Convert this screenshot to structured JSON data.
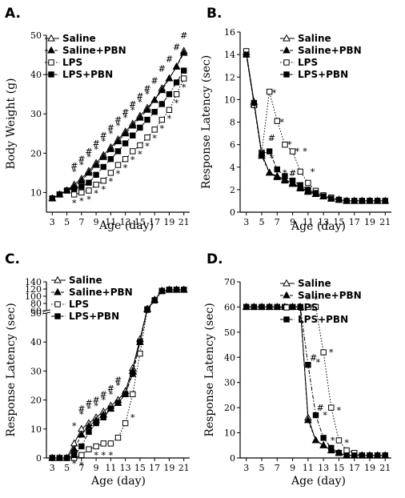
{
  "chart_data": [
    {
      "id": "A",
      "panel_label": "A.",
      "type": "line",
      "xlabel": "Age (day)",
      "ylabel": "Body Weight (g)",
      "xlim": [
        2.2,
        21.8
      ],
      "ylim": [
        5,
        50
      ],
      "xticks": [
        3,
        5,
        7,
        9,
        11,
        13,
        15,
        17,
        19,
        21
      ],
      "yticks": [
        10,
        20,
        30,
        40,
        50
      ],
      "legend": [
        {
          "name": "Saline",
          "marker": "open-triangle",
          "dash": "solid"
        },
        {
          "name": "Saline+PBN",
          "marker": "filled-triangle",
          "dash": "dashed"
        },
        {
          "name": "LPS",
          "marker": "open-square",
          "dash": "dotted"
        },
        {
          "name": "LPS+PBN",
          "marker": "filled-square",
          "dash": "dashdot"
        }
      ],
      "x": [
        3,
        4,
        5,
        6,
        7,
        8,
        9,
        10,
        11,
        12,
        13,
        14,
        15,
        16,
        17,
        18,
        19,
        20,
        21
      ],
      "series": [
        {
          "name": "Saline",
          "marker": "open-triangle",
          "dash": "solid",
          "values": [
            8.5,
            9.5,
            10.5,
            12,
            13.5,
            15.5,
            17.5,
            19.5,
            21.5,
            23.5,
            25.5,
            27.5,
            29.5,
            31.5,
            33.5,
            36.5,
            39,
            42,
            46
          ]
        },
        {
          "name": "Saline+PBN",
          "marker": "filled-triangle",
          "dash": "dashed",
          "values": [
            8.5,
            9.5,
            10.5,
            11.5,
            13,
            15,
            17,
            19,
            21,
            23,
            25,
            27,
            29,
            31,
            33.5,
            36,
            39,
            42,
            45.5
          ]
        },
        {
          "name": "LPS",
          "marker": "open-square",
          "dash": "dotted",
          "values": [
            8.5,
            9.5,
            10.5,
            9.5,
            10,
            10.5,
            12,
            13,
            15,
            17,
            18.5,
            20.5,
            22,
            24,
            26,
            28.5,
            31,
            35,
            39
          ]
        },
        {
          "name": "LPS+PBN",
          "marker": "filled-square",
          "dash": "dashdot",
          "values": [
            8.5,
            9.5,
            10.5,
            11,
            11.5,
            12.5,
            14.5,
            16.5,
            18.5,
            20.5,
            22.5,
            24.5,
            26.5,
            28.5,
            30.5,
            32.5,
            35,
            38,
            41
          ]
        }
      ],
      "annotations": [
        {
          "text": "#",
          "x": 6,
          "y": 16.8
        },
        {
          "text": "#",
          "x": 7,
          "y": 18.5
        },
        {
          "text": "#",
          "x": 8,
          "y": 20.5
        },
        {
          "text": "#",
          "x": 9,
          "y": 22.5
        },
        {
          "text": "#",
          "x": 10,
          "y": 24.5
        },
        {
          "text": "#",
          "x": 11,
          "y": 26.5
        },
        {
          "text": "#",
          "x": 12,
          "y": 28.5
        },
        {
          "text": "#",
          "x": 13,
          "y": 30.5
        },
        {
          "text": "#",
          "x": 14,
          "y": 32.5
        },
        {
          "text": "#",
          "x": 15,
          "y": 34.5
        },
        {
          "text": "#",
          "x": 16,
          "y": 36.5
        },
        {
          "text": "#",
          "x": 17,
          "y": 38.5
        },
        {
          "text": "#",
          "x": 18,
          "y": 41.5
        },
        {
          "text": "#",
          "x": 19,
          "y": 44
        },
        {
          "text": "#",
          "x": 20,
          "y": 47
        },
        {
          "text": "#",
          "x": 21,
          "y": 50
        },
        {
          "text": "*",
          "x": 6,
          "y": 15.3
        },
        {
          "text": "*",
          "x": 7,
          "y": 17
        },
        {
          "text": "*",
          "x": 8,
          "y": 19
        },
        {
          "text": "*",
          "x": 9,
          "y": 21
        },
        {
          "text": "*",
          "x": 10,
          "y": 23
        },
        {
          "text": "*",
          "x": 11,
          "y": 25
        },
        {
          "text": "*",
          "x": 12,
          "y": 27
        },
        {
          "text": "*",
          "x": 13,
          "y": 29
        },
        {
          "text": "*",
          "x": 14,
          "y": 31
        },
        {
          "text": "*",
          "x": 15,
          "y": 33
        },
        {
          "text": "*",
          "x": 16,
          "y": 35
        },
        {
          "text": "*",
          "x": 6,
          "y": 7.3
        },
        {
          "text": "*",
          "x": 7,
          "y": 7.8
        },
        {
          "text": "*",
          "x": 8,
          "y": 8.3
        },
        {
          "text": "*",
          "x": 9,
          "y": 9.8
        },
        {
          "text": "*",
          "x": 10,
          "y": 10.8
        },
        {
          "text": "*",
          "x": 11,
          "y": 12.8
        },
        {
          "text": "*",
          "x": 12,
          "y": 14.8
        },
        {
          "text": "*",
          "x": 13,
          "y": 16.3
        },
        {
          "text": "*",
          "x": 14,
          "y": 18.3
        },
        {
          "text": "*",
          "x": 15,
          "y": 19.8
        },
        {
          "text": "*",
          "x": 16,
          "y": 21.8
        },
        {
          "text": "*",
          "x": 17,
          "y": 23.8
        },
        {
          "text": "*",
          "x": 18,
          "y": 26.3
        },
        {
          "text": "*",
          "x": 19,
          "y": 28.8
        },
        {
          "text": "*",
          "x": 20,
          "y": 32.8
        },
        {
          "text": "*",
          "x": 21,
          "y": 36.8
        }
      ]
    },
    {
      "id": "B",
      "panel_label": "B.",
      "type": "line",
      "xlabel": "Age (day)",
      "ylabel": "Response Latency (sec)",
      "xlim": [
        2.2,
        21.8
      ],
      "ylim": [
        0,
        16
      ],
      "xticks": [
        3,
        5,
        7,
        9,
        11,
        13,
        15,
        17,
        19,
        21
      ],
      "yticks": [
        0,
        2,
        4,
        6,
        8,
        10,
        12,
        14,
        16
      ],
      "legend": [
        {
          "name": "Saline",
          "marker": "open-triangle",
          "dash": "solid"
        },
        {
          "name": "Saline+PBN",
          "marker": "filled-triangle",
          "dash": "dashed"
        },
        {
          "name": "LPS",
          "marker": "open-square",
          "dash": "dotted"
        },
        {
          "name": "LPS+PBN",
          "marker": "filled-square",
          "dash": "dashdot"
        }
      ],
      "x": [
        3,
        4,
        5,
        6,
        7,
        8,
        9,
        10,
        11,
        12,
        13,
        14,
        15,
        16,
        17,
        18,
        19,
        20,
        21
      ],
      "series": [
        {
          "name": "Saline",
          "marker": "open-triangle",
          "dash": "solid",
          "values": [
            14.2,
            9.8,
            5.2,
            3.5,
            3.2,
            2.9,
            2.6,
            2.2,
            1.9,
            1.6,
            1.4,
            1.2,
            1.1,
            1.0,
            1.0,
            1.0,
            1.0,
            1.0,
            1.0
          ]
        },
        {
          "name": "Saline+PBN",
          "marker": "filled-triangle",
          "dash": "dashed",
          "values": [
            14.0,
            9.6,
            5.0,
            3.5,
            3.1,
            2.8,
            2.5,
            2.1,
            1.8,
            1.6,
            1.4,
            1.2,
            1.1,
            1.0,
            1.0,
            1.0,
            1.0,
            1.0,
            1.0
          ]
        },
        {
          "name": "LPS",
          "marker": "open-square",
          "dash": "dotted",
          "values": [
            14.3,
            9.5,
            5.3,
            10.7,
            8.1,
            6.0,
            5.4,
            3.6,
            2.6,
            1.9,
            1.5,
            1.3,
            1.1,
            1.0,
            1.0,
            1.0,
            1.0,
            1.0,
            1.0
          ]
        },
        {
          "name": "LPS+PBN",
          "marker": "filled-square",
          "dash": "dashdot",
          "values": [
            14.0,
            9.7,
            5.2,
            5.4,
            3.8,
            3.2,
            2.8,
            2.4,
            2.0,
            1.7,
            1.4,
            1.2,
            1.1,
            1.0,
            1.0,
            1.0,
            1.0,
            1.0,
            1.0
          ]
        }
      ],
      "annotations": [
        {
          "text": "*",
          "x": 6.6,
          "y": 10.6
        },
        {
          "text": "*",
          "x": 7.6,
          "y": 8.0
        },
        {
          "text": "*",
          "x": 8.6,
          "y": 6.0
        },
        {
          "text": "*",
          "x": 9.6,
          "y": 5.4
        },
        {
          "text": "*",
          "x": 10.6,
          "y": 5.4
        },
        {
          "text": "*",
          "x": 11.6,
          "y": 3.6
        },
        {
          "text": "#",
          "x": 6.3,
          "y": 6.6
        },
        {
          "text": "*",
          "x": 6.3,
          "y": 4.8
        },
        {
          "text": "*",
          "x": 8.0,
          "y": 3.5
        },
        {
          "text": "#",
          "x": 9.0,
          "y": 3.5
        }
      ]
    },
    {
      "id": "C",
      "panel_label": "C.",
      "type": "line",
      "xlabel": "Age (day)",
      "ylabel": "Response Latency (sec)",
      "xlim": [
        2.2,
        21.8
      ],
      "ylim": [
        0,
        140
      ],
      "axis_break": [
        50,
        60
      ],
      "xticks": [
        3,
        5,
        7,
        9,
        11,
        13,
        15,
        17,
        19,
        21
      ],
      "yticks": [
        0,
        10,
        20,
        30,
        40,
        50,
        60,
        80,
        100,
        120,
        140
      ],
      "legend": [
        {
          "name": "Saline",
          "marker": "open-triangle",
          "dash": "solid"
        },
        {
          "name": "Saline+PBN",
          "marker": "filled-triangle",
          "dash": "dashed"
        },
        {
          "name": "LPS",
          "marker": "open-square",
          "dash": "dotted"
        },
        {
          "name": "LPS+PBN",
          "marker": "filled-square",
          "dash": "dashdot"
        }
      ],
      "x": [
        3,
        4,
        5,
        6,
        7,
        8,
        9,
        10,
        11,
        12,
        13,
        14,
        15,
        16,
        17,
        18,
        19,
        20,
        21
      ],
      "series": [
        {
          "name": "Saline",
          "marker": "open-triangle",
          "dash": "solid",
          "values": [
            0,
            0,
            0,
            5,
            10,
            12,
            14,
            16,
            18,
            20,
            23,
            31,
            41,
            65,
            90,
            115,
            118,
            118,
            118
          ]
        },
        {
          "name": "Saline+PBN",
          "marker": "filled-triangle",
          "dash": "dashed",
          "values": [
            0,
            0,
            0,
            3,
            8,
            11,
            13,
            15,
            17,
            19,
            22,
            30,
            40,
            64,
            90,
            115,
            118,
            118,
            118
          ]
        },
        {
          "name": "LPS",
          "marker": "open-square",
          "dash": "dotted",
          "values": [
            0,
            0,
            0,
            0,
            1,
            3,
            4,
            5,
            5,
            7,
            12,
            22,
            36,
            62,
            88,
            114,
            118,
            118,
            118
          ]
        },
        {
          "name": "LPS+PBN",
          "marker": "filled-square",
          "dash": "dashdot",
          "values": [
            0,
            0,
            0,
            1,
            4,
            9,
            12,
            14,
            17,
            19,
            22,
            29,
            40,
            64,
            89,
            115,
            118,
            118,
            118
          ]
        }
      ],
      "annotations": [
        {
          "text": "*",
          "x": 6,
          "y": 11
        },
        {
          "text": "#",
          "x": 7,
          "y": 17
        },
        {
          "text": "#",
          "x": 8,
          "y": 19
        },
        {
          "text": "#",
          "x": 9,
          "y": 20
        },
        {
          "text": "#",
          "x": 10,
          "y": 22
        },
        {
          "text": "#",
          "x": 11,
          "y": 24
        },
        {
          "text": "#",
          "x": 12,
          "y": 27
        },
        {
          "text": "*",
          "x": 7,
          "y": 15
        },
        {
          "text": "*",
          "x": 8,
          "y": 17
        },
        {
          "text": "*",
          "x": 9,
          "y": 18
        },
        {
          "text": "*",
          "x": 10,
          "y": 20
        },
        {
          "text": "*",
          "x": 11,
          "y": 22
        },
        {
          "text": "*",
          "x": 12,
          "y": 25
        },
        {
          "text": "*",
          "x": 6,
          "y": -2
        },
        {
          "text": "*",
          "x": 7,
          "y": -2.5
        },
        {
          "text": "*",
          "x": 9,
          "y": 1
        },
        {
          "text": "*",
          "x": 10,
          "y": 1
        },
        {
          "text": "*",
          "x": 11,
          "y": 1
        },
        {
          "text": "*",
          "x": 14,
          "y": 14
        }
      ]
    },
    {
      "id": "D",
      "panel_label": "D.",
      "type": "line",
      "xlabel": "Age (day)",
      "ylabel": "Response Latency (sec)",
      "xlim": [
        2.2,
        21.8
      ],
      "ylim": [
        0,
        70
      ],
      "xticks": [
        3,
        5,
        7,
        9,
        11,
        13,
        15,
        17,
        19,
        21
      ],
      "yticks": [
        0,
        10,
        20,
        30,
        40,
        50,
        60,
        70
      ],
      "legend": [
        {
          "name": "Saline",
          "marker": "open-triangle",
          "dash": "solid"
        },
        {
          "name": "Saline+PBN",
          "marker": "filled-triangle",
          "dash": "dashed"
        },
        {
          "name": "LPS",
          "marker": "open-square",
          "dash": "dotted"
        },
        {
          "name": "LPS+PBN",
          "marker": "filled-square",
          "dash": "dashdot"
        }
      ],
      "x": [
        3,
        4,
        5,
        6,
        7,
        8,
        9,
        10,
        11,
        12,
        13,
        14,
        15,
        16,
        17,
        18,
        19,
        20,
        21
      ],
      "series": [
        {
          "name": "Saline",
          "marker": "open-triangle",
          "dash": "solid",
          "values": [
            60,
            60,
            60,
            60,
            60,
            60,
            60,
            60,
            16,
            7,
            5,
            3,
            2,
            1,
            1,
            1,
            1,
            1,
            1
          ]
        },
        {
          "name": "Saline+PBN",
          "marker": "filled-triangle",
          "dash": "dashed",
          "values": [
            60,
            60,
            60,
            60,
            60,
            60,
            60,
            60,
            15,
            7,
            5,
            3,
            2,
            1,
            1,
            1,
            1,
            1,
            1
          ]
        },
        {
          "name": "LPS",
          "marker": "open-square",
          "dash": "dotted",
          "values": [
            60,
            60,
            60,
            60,
            60,
            60,
            60,
            60,
            60,
            60,
            42,
            20,
            7,
            3,
            2,
            1,
            1,
            1,
            1
          ]
        },
        {
          "name": "LPS+PBN",
          "marker": "filled-square",
          "dash": "dashdot",
          "values": [
            60,
            60,
            60,
            60,
            60,
            60,
            60,
            60,
            37,
            17,
            8,
            4,
            2,
            1,
            1,
            1,
            1,
            1,
            1
          ]
        }
      ],
      "annotations": [
        {
          "text": "*",
          "x": 11,
          "y": 63
        },
        {
          "text": "*",
          "x": 12,
          "y": 63
        },
        {
          "text": "*",
          "x": 14,
          "y": 42
        },
        {
          "text": "*",
          "x": 15,
          "y": 19
        },
        {
          "text": "*",
          "x": 16,
          "y": 6
        },
        {
          "text": "#",
          "x": 11.7,
          "y": 40
        },
        {
          "text": "*",
          "x": 12.3,
          "y": 38
        },
        {
          "text": "#",
          "x": 12.6,
          "y": 20
        },
        {
          "text": "*",
          "x": 13.2,
          "y": 17
        },
        {
          "text": "*",
          "x": 14.2,
          "y": 7
        }
      ]
    }
  ]
}
